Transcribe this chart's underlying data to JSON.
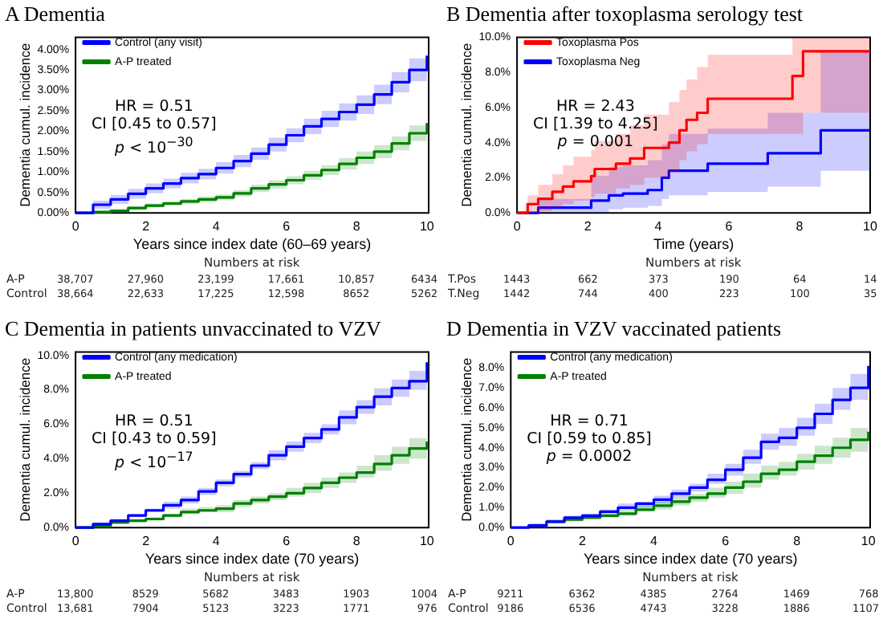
{
  "chart_data": [
    {
      "type": "step",
      "title": "A Dementia",
      "xlabel": "Years since index date (60–69 years)",
      "ylabel": "Dementia cumul. incidence",
      "xlim": [
        0,
        10.05
      ],
      "xticks": [
        0,
        2,
        4,
        6,
        8,
        10
      ],
      "ylim": [
        0,
        4.3
      ],
      "yticks": [
        {
          "value": 0,
          "label": "0.00%"
        },
        {
          "value": 0.5,
          "label": "0.50%"
        },
        {
          "value": 1,
          "label": "1.00%"
        },
        {
          "value": 1.5,
          "label": "1.50%"
        },
        {
          "value": 2,
          "label": "2.00%"
        },
        {
          "value": 2.5,
          "label": "2.50%"
        },
        {
          "value": 3,
          "label": "3.00%"
        },
        {
          "value": 3.5,
          "label": "3.50%"
        },
        {
          "value": 4,
          "label": "4.00%"
        }
      ],
      "legend": "top left",
      "series": [
        {
          "name": "Control (any visit)",
          "color": "#0000ff",
          "x": [
            0,
            0.5,
            1,
            1.5,
            2,
            2.5,
            3,
            3.5,
            4,
            4.5,
            5,
            5.5,
            6,
            6.5,
            7,
            7.5,
            8,
            8.5,
            9,
            9.5,
            10
          ],
          "values": [
            0,
            0.2,
            0.33,
            0.47,
            0.6,
            0.72,
            0.85,
            0.95,
            1.1,
            1.27,
            1.45,
            1.67,
            1.9,
            2.12,
            2.3,
            2.47,
            2.65,
            2.9,
            3.2,
            3.5,
            3.85
          ],
          "lower": [
            0,
            0.1,
            0.22,
            0.35,
            0.48,
            0.6,
            0.72,
            0.82,
            0.96,
            1.12,
            1.3,
            1.5,
            1.73,
            1.93,
            2.1,
            2.26,
            2.42,
            2.66,
            2.95,
            3.22,
            3.55
          ],
          "upper": [
            0,
            0.3,
            0.44,
            0.59,
            0.72,
            0.84,
            0.98,
            1.08,
            1.24,
            1.42,
            1.6,
            1.84,
            2.07,
            2.31,
            2.5,
            2.68,
            2.88,
            3.14,
            3.45,
            3.78,
            4.15
          ]
        },
        {
          "name": "A-P treated",
          "color": "#008000",
          "x": [
            0,
            0.5,
            1,
            1.5,
            2,
            2.5,
            3,
            3.5,
            4,
            4.5,
            5,
            5.5,
            6,
            6.5,
            7,
            7.5,
            8,
            8.5,
            9,
            9.5,
            10
          ],
          "values": [
            0,
            0.02,
            0.05,
            0.12,
            0.18,
            0.23,
            0.28,
            0.33,
            0.38,
            0.48,
            0.6,
            0.7,
            0.8,
            0.92,
            1.05,
            1.2,
            1.35,
            1.5,
            1.7,
            1.95,
            2.2
          ],
          "lower": [
            0,
            0,
            0.02,
            0.08,
            0.13,
            0.17,
            0.22,
            0.26,
            0.31,
            0.4,
            0.51,
            0.6,
            0.7,
            0.81,
            0.93,
            1.06,
            1.2,
            1.34,
            1.53,
            1.76,
            2.0
          ],
          "upper": [
            0,
            0.04,
            0.08,
            0.16,
            0.23,
            0.29,
            0.34,
            0.4,
            0.45,
            0.56,
            0.69,
            0.8,
            0.9,
            1.03,
            1.17,
            1.34,
            1.5,
            1.66,
            1.87,
            2.14,
            2.4
          ]
        }
      ],
      "annotations": [
        "HR = 0.51",
        "CI [0.45 to 0.57]",
        "p < 10$^{−30}$",
        "Numbers at risk",
        "A-P",
        "38,707",
        "27,960",
        "23,199",
        "17,661",
        "10,857",
        "6434",
        "Control",
        "38,664",
        "22,633",
        "17,225",
        "12,598",
        "8652",
        "5262"
      ]
    },
    {
      "type": "step",
      "title": "B Dementia after toxoplasma serology test",
      "xlabel": "Time (years)",
      "ylabel": "Dementia cumul. incidence",
      "xlim": [
        0,
        10
      ],
      "xticks": [
        0,
        2,
        4,
        6,
        8,
        10
      ],
      "ylim": [
        0,
        10
      ],
      "yticks": [
        {
          "value": 0,
          "label": "0.0%"
        },
        {
          "value": 2,
          "label": "2.0%"
        },
        {
          "value": 4,
          "label": "4.0%"
        },
        {
          "value": 6,
          "label": "6.0%"
        },
        {
          "value": 8,
          "label": "8.0%"
        },
        {
          "value": 10,
          "label": "10.0%"
        }
      ],
      "legend": "top left",
      "series": [
        {
          "name": "Toxoplasma Pos",
          "color": "#ff0000",
          "x": [
            0,
            0.3,
            0.6,
            1,
            1.3,
            1.6,
            2.1,
            2.2,
            2.8,
            3.2,
            3.6,
            4.3,
            4.6,
            4.8,
            5.1,
            5.4,
            7.8,
            8.1,
            10
          ],
          "values": [
            0,
            0.5,
            0.8,
            1.2,
            1.5,
            1.8,
            2.1,
            2.5,
            2.8,
            3.1,
            3.7,
            4.0,
            4.7,
            5.3,
            5.7,
            6.5,
            7.8,
            9.2,
            9.2
          ],
          "lower": [
            0,
            0,
            0.1,
            0.3,
            0.5,
            0.7,
            0.9,
            1.1,
            1.4,
            1.6,
            2.0,
            2.3,
            3.0,
            3.5,
            3.9,
            4.5,
            4.5,
            5.7,
            5.7
          ],
          "upper": [
            0,
            1.0,
            1.6,
            2.2,
            2.7,
            3.2,
            3.6,
            4.1,
            4.5,
            5.0,
            5.6,
            6.3,
            7.0,
            7.6,
            8.3,
            9.0,
            10,
            10,
            10
          ]
        },
        {
          "name": "Toxoplasma Neg",
          "color": "#0000ff",
          "x": [
            0,
            0.6,
            2.1,
            2.6,
            3,
            3.7,
            4.1,
            4.3,
            5.4,
            7.1,
            8.6,
            10
          ],
          "values": [
            0,
            0.3,
            0.7,
            1.0,
            1.1,
            1.3,
            2.0,
            2.4,
            2.8,
            3.4,
            4.7,
            4.7
          ],
          "lower": [
            0,
            0,
            0,
            0.2,
            0.3,
            0.4,
            0.8,
            1.0,
            1.2,
            1.5,
            2.4,
            2.4
          ],
          "upper": [
            0,
            0.8,
            2.1,
            2.6,
            2.7,
            3.0,
            3.9,
            4.5,
            4.8,
            5.7,
            9.2,
            9.2
          ]
        }
      ],
      "annotations": [
        "HR = 2.43",
        "CI [1.39 to 4.25]",
        "p = 0.001",
        "Numbers at risk",
        "T.Pos",
        "1443",
        "662",
        "373",
        "190",
        "64",
        "14",
        "T.Neg",
        "1442",
        "744",
        "400",
        "223",
        "100",
        "35"
      ]
    },
    {
      "type": "step",
      "title": "C Dementia in patients unvaccinated to VZV",
      "xlabel": "Years since index date (70 years)",
      "ylabel": "Dementia cumul. incidence",
      "xlim": [
        0,
        10.05
      ],
      "xticks": [
        0,
        2,
        4,
        6,
        8,
        10
      ],
      "ylim": [
        0,
        10.2
      ],
      "yticks": [
        {
          "value": 0,
          "label": "0.0%"
        },
        {
          "value": 2,
          "label": "2.0%"
        },
        {
          "value": 4,
          "label": "4.0%"
        },
        {
          "value": 6,
          "label": "6.0%"
        },
        {
          "value": 8,
          "label": "8.0%"
        },
        {
          "value": 10,
          "label": "10.0%"
        }
      ],
      "legend": "top left",
      "series": [
        {
          "name": "Control (any medication)",
          "color": "#0000ff",
          "x": [
            0,
            0.5,
            1,
            1.5,
            2,
            2.5,
            3,
            3.5,
            4,
            4.5,
            5,
            5.5,
            6,
            6.5,
            7,
            7.5,
            8,
            8.5,
            9,
            9.5,
            10
          ],
          "values": [
            0,
            0.2,
            0.4,
            0.7,
            1.0,
            1.3,
            1.6,
            2.1,
            2.6,
            3.1,
            3.6,
            4.2,
            4.7,
            5.2,
            5.7,
            6.4,
            7.0,
            7.6,
            8.1,
            8.5,
            9.6
          ],
          "lower": [
            0,
            0.1,
            0.3,
            0.6,
            0.9,
            1.1,
            1.4,
            1.9,
            2.4,
            2.9,
            3.4,
            3.9,
            4.4,
            4.9,
            5.4,
            6.0,
            6.6,
            7.1,
            7.6,
            8.0,
            9.0
          ],
          "upper": [
            0,
            0.3,
            0.5,
            0.8,
            1.1,
            1.5,
            1.8,
            2.3,
            2.8,
            3.3,
            3.8,
            4.5,
            5.0,
            5.5,
            6.0,
            6.8,
            7.4,
            8.1,
            8.6,
            9.1,
            10.2
          ]
        },
        {
          "name": "A-P treated",
          "color": "#008000",
          "x": [
            0,
            0.5,
            1,
            1.5,
            2,
            2.5,
            3,
            3.5,
            4,
            4.5,
            5,
            5.5,
            6,
            6.5,
            7,
            7.5,
            8,
            8.5,
            9,
            9.5,
            10
          ],
          "values": [
            0,
            0.1,
            0.3,
            0.4,
            0.5,
            0.7,
            0.9,
            1.0,
            1.1,
            1.4,
            1.6,
            1.8,
            2.0,
            2.3,
            2.6,
            2.9,
            3.2,
            3.7,
            4.2,
            4.6,
            5.0
          ],
          "lower": [
            0,
            0,
            0.2,
            0.3,
            0.4,
            0.6,
            0.8,
            0.9,
            0.9,
            1.2,
            1.4,
            1.6,
            1.8,
            2.0,
            2.3,
            2.6,
            2.9,
            3.3,
            3.7,
            4.0,
            4.3
          ],
          "upper": [
            0,
            0.2,
            0.4,
            0.5,
            0.6,
            0.8,
            1.1,
            1.2,
            1.3,
            1.6,
            1.8,
            2.0,
            2.3,
            2.6,
            2.9,
            3.2,
            3.6,
            4.2,
            4.7,
            5.2,
            5.7
          ]
        }
      ],
      "annotations": [
        "HR = 0.51",
        "CI [0.43 to 0.59]",
        "p < 10$^{−17}$",
        "Numbers at risk",
        "A-P",
        "13,800",
        "8529",
        "5682",
        "3483",
        "1903",
        "1004",
        "Control",
        "13,681",
        "7904",
        "5123",
        "3223",
        "1771",
        "976"
      ]
    },
    {
      "type": "step",
      "title": "D Dementia in VZV vaccinated patients",
      "xlabel": "Years since index date (70 years)",
      "ylabel": "Dementia cumul. incidence",
      "xlim": [
        0,
        10.05
      ],
      "xticks": [
        0,
        2,
        4,
        6,
        8,
        10
      ],
      "ylim": [
        0,
        8.8
      ],
      "yticks": [
        {
          "value": 0,
          "label": "0.0%"
        },
        {
          "value": 1,
          "label": "1.0%"
        },
        {
          "value": 2,
          "label": "2.0%"
        },
        {
          "value": 3,
          "label": "3.0%"
        },
        {
          "value": 4,
          "label": "4.0%"
        },
        {
          "value": 5,
          "label": "5.0%"
        },
        {
          "value": 6,
          "label": "6.0%"
        },
        {
          "value": 7,
          "label": "7.0%"
        },
        {
          "value": 8,
          "label": "8.0%"
        }
      ],
      "legend": "top left",
      "series": [
        {
          "name": "Control (any medication)",
          "color": "#0000ff",
          "x": [
            0,
            0.5,
            1,
            1.5,
            2,
            2.5,
            3,
            3.5,
            4,
            4.5,
            5,
            5.5,
            6,
            6.5,
            7,
            7.5,
            8,
            8.5,
            9,
            9.5,
            10
          ],
          "values": [
            0,
            0.1,
            0.3,
            0.5,
            0.6,
            0.8,
            1.0,
            1.2,
            1.4,
            1.7,
            2.0,
            2.4,
            2.9,
            3.5,
            4.3,
            4.5,
            5.0,
            5.7,
            6.4,
            7.0,
            8.1
          ],
          "lower": [
            0,
            0.1,
            0.2,
            0.4,
            0.5,
            0.7,
            0.9,
            1.0,
            1.2,
            1.5,
            1.8,
            2.2,
            2.6,
            3.2,
            3.9,
            4.1,
            4.6,
            5.2,
            5.9,
            6.4,
            7.4
          ],
          "upper": [
            0,
            0.2,
            0.4,
            0.6,
            0.7,
            0.9,
            1.2,
            1.3,
            1.6,
            1.9,
            2.2,
            2.7,
            3.2,
            3.9,
            4.7,
            5.0,
            5.5,
            6.2,
            7.0,
            7.7,
            8.8
          ]
        },
        {
          "name": "A-P treated",
          "color": "#008000",
          "x": [
            0,
            0.5,
            1,
            1.5,
            2,
            2.5,
            3,
            3.5,
            4,
            4.5,
            5,
            5.5,
            6,
            6.5,
            7,
            7.5,
            8,
            8.5,
            9,
            9.5,
            10
          ],
          "values": [
            null,
            null,
            0.3,
            0.4,
            0.5,
            0.6,
            0.7,
            0.9,
            1.1,
            1.3,
            1.5,
            1.7,
            2.0,
            2.3,
            2.7,
            2.9,
            3.3,
            3.6,
            4.0,
            4.4,
            4.8
          ],
          "lower": [
            0,
            0.1,
            0.2,
            0.3,
            0.4,
            0.5,
            0.6,
            0.8,
            0.9,
            1.1,
            1.3,
            1.5,
            1.7,
            2.0,
            2.4,
            2.6,
            2.9,
            3.2,
            3.5,
            3.8,
            4.0
          ],
          "upper": [
            0,
            0.2,
            0.4,
            0.5,
            0.6,
            0.7,
            0.9,
            1.1,
            1.3,
            1.5,
            1.7,
            2.0,
            2.3,
            2.7,
            3.1,
            3.3,
            3.7,
            4.1,
            4.5,
            5.0,
            5.6
          ]
        }
      ],
      "annotations": [
        "HR = 0.71",
        "CI [0.59 to 0.85]",
        "p = 0.0002",
        "Numbers at risk",
        "A-P",
        "9211",
        "6362",
        "4385",
        "2764",
        "1469",
        "768",
        "Control",
        "9186",
        "6536",
        "4743",
        "3228",
        "1886",
        "1107"
      ]
    }
  ]
}
